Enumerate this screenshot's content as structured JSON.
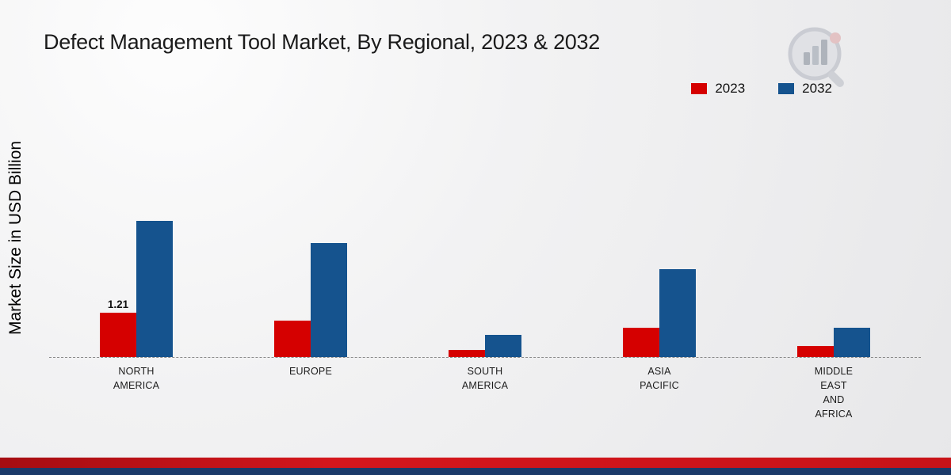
{
  "page": {
    "title": "Defect Management Tool Market, By Regional, 2023 & 2032",
    "ylabel": "Market Size in USD Billion",
    "logo": "market-research-future-logo"
  },
  "chart_data": {
    "type": "bar",
    "title": "Defect Management Tool Market, By Regional, 2023 & 2032",
    "xlabel": "",
    "ylabel": "Market Size in USD Billion",
    "categories": [
      "NORTH\nAMERICA",
      "EUROPE",
      "SOUTH\nAMERICA",
      "ASIA\nPACIFIC",
      "MIDDLE\nEAST\nAND\nAFRICA"
    ],
    "series": [
      {
        "name": "2023",
        "color": "#d50000",
        "values": [
          1.21,
          1.0,
          0.2,
          0.8,
          0.3
        ],
        "data_labels": [
          "1.21",
          "",
          "",
          "",
          ""
        ]
      },
      {
        "name": "2032",
        "color": "#15538e",
        "values": [
          3.7,
          3.1,
          0.6,
          2.4,
          0.8
        ],
        "data_labels": [
          "",
          "",
          "",
          "",
          ""
        ]
      }
    ],
    "ylim": [
      0,
      3.9
    ],
    "legend_position": "top-right",
    "grid": false,
    "baseline_style": "dashed"
  },
  "colors": {
    "accent_red": "#d50000",
    "accent_blue": "#15538e",
    "footer_red": "#c81318",
    "footer_navy": "#1b3a69"
  }
}
